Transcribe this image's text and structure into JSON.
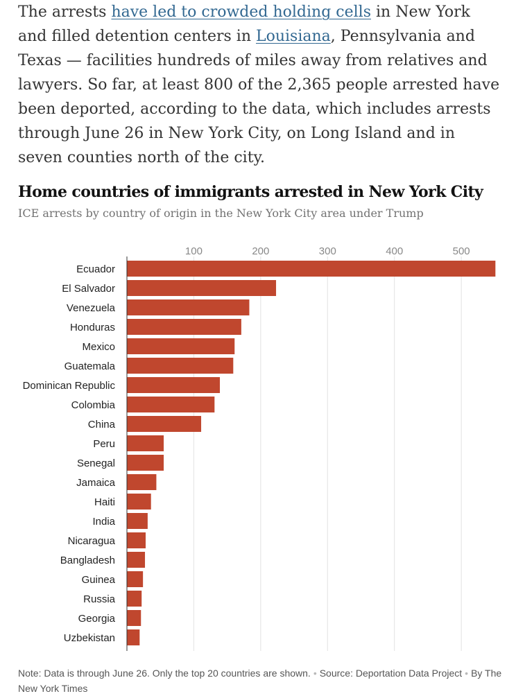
{
  "article": {
    "intro": "The arrests ",
    "link1": "have led to crowded holding cells",
    "mid1": " in New York and filled detention centers in ",
    "link2": "Louisiana",
    "rest": ", Pennsylvania and Texas — facilities hundreds of miles away from relatives and lawyers. So far, at least 800 of the 2,365 people arrested have been deported, according to the data, which includes arrests through June 26 in New York City, on Long Island and in seven counties north of the city."
  },
  "chart_data": {
    "type": "bar",
    "orientation": "horizontal",
    "title": "Home countries of immigrants arrested in New York City",
    "subtitle": "ICE arrests by country of origin in the New York City area under Trump",
    "categories": [
      "Ecuador",
      "El Salvador",
      "Venezuela",
      "Honduras",
      "Mexico",
      "Guatemala",
      "Dominican Republic",
      "Colombia",
      "China",
      "Peru",
      "Senegal",
      "Jamaica",
      "Haiti",
      "India",
      "Nicaragua",
      "Bangladesh",
      "Guinea",
      "Russia",
      "Georgia",
      "Uzbekistan"
    ],
    "values": [
      551,
      223,
      183,
      171,
      161,
      159,
      139,
      131,
      111,
      55,
      55,
      44,
      36,
      31,
      28,
      27,
      24,
      22,
      21,
      19
    ],
    "x_ticks": [
      100,
      200,
      300,
      400,
      500
    ],
    "xlim": [
      0,
      560
    ],
    "grid": true,
    "bar_color": "#c0472e"
  },
  "footer": {
    "note": "Note: Data is through June 26. Only the top 20 countries are shown.",
    "source": "Source: Deportation Data Project",
    "byline": "By The New York Times"
  }
}
